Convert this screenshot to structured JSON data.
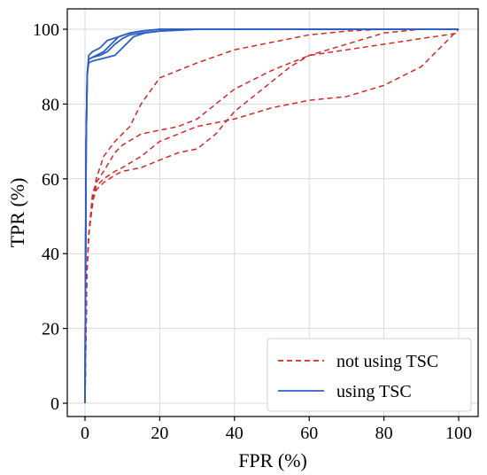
{
  "chart_data": {
    "type": "line",
    "title": "",
    "xlabel": "FPR (%)",
    "ylabel": "TPR (%)",
    "xlim": [
      0,
      100
    ],
    "ylim": [
      0,
      100
    ],
    "xticks": [
      0,
      20,
      40,
      60,
      80,
      100
    ],
    "yticks": [
      0,
      20,
      40,
      60,
      80,
      100
    ],
    "grid": true,
    "legend_position": "bottom-right",
    "legend": [
      {
        "label": "not using TSC",
        "style": "dashed",
        "color": "#d62728"
      },
      {
        "label": "using TSC",
        "style": "solid",
        "color": "#2f5fc4"
      }
    ],
    "series": [
      {
        "group": "not using TSC",
        "color": "#d62728",
        "dashed": true,
        "x": [
          0,
          0.5,
          1,
          2,
          3,
          5,
          8,
          12,
          15,
          20,
          30,
          40,
          50,
          60,
          70,
          80,
          90,
          95,
          100
        ],
        "y": [
          0,
          35,
          45,
          53,
          60,
          66,
          70,
          74,
          80,
          87,
          91,
          94.5,
          96.5,
          98.5,
          99.5,
          100,
          100,
          100,
          100
        ]
      },
      {
        "group": "not using TSC",
        "color": "#d62728",
        "dashed": true,
        "x": [
          0,
          0.5,
          1,
          2,
          3,
          5,
          8,
          10,
          15,
          20,
          25,
          30,
          35,
          40,
          50,
          60,
          70,
          80,
          90,
          100
        ],
        "y": [
          0,
          35,
          45,
          55,
          58,
          60,
          62,
          63,
          66,
          70,
          72,
          74,
          75,
          76,
          79,
          81,
          82,
          85,
          90,
          100
        ]
      },
      {
        "group": "not using TSC",
        "color": "#d62728",
        "dashed": true,
        "x": [
          0,
          0.5,
          1,
          2,
          3,
          5,
          8,
          10,
          15,
          20,
          25,
          30,
          35,
          40,
          45,
          50,
          55,
          60,
          70,
          80,
          90,
          100
        ],
        "y": [
          0,
          35,
          45,
          54,
          57,
          59,
          61,
          62,
          63,
          65,
          67,
          68,
          72,
          78,
          82,
          86,
          90,
          93,
          96,
          99,
          100,
          100
        ]
      },
      {
        "group": "not using TSC",
        "color": "#d62728",
        "dashed": true,
        "x": [
          0,
          0.5,
          1,
          2,
          3,
          5,
          8,
          10,
          15,
          20,
          25,
          30,
          40,
          50,
          60,
          70,
          80,
          90,
          100
        ],
        "y": [
          0,
          35,
          45,
          56,
          59,
          62,
          67,
          69,
          72,
          73,
          74,
          76,
          84,
          89,
          93,
          94.5,
          96,
          97.5,
          99
        ]
      },
      {
        "group": "using TSC",
        "color": "#2f5fc4",
        "dashed": false,
        "x": [
          0,
          0.3,
          0.6,
          1,
          2,
          4,
          6,
          8,
          10,
          12,
          15,
          20,
          30,
          50,
          100
        ],
        "y": [
          0,
          70,
          88,
          92,
          92.5,
          93,
          94,
          96,
          97.5,
          98.5,
          99,
          99.5,
          100,
          100,
          100
        ]
      },
      {
        "group": "using TSC",
        "color": "#2f5fc4",
        "dashed": false,
        "x": [
          0,
          0.3,
          0.6,
          1,
          2,
          3,
          5,
          7,
          9,
          12,
          15,
          20,
          30,
          100
        ],
        "y": [
          0,
          70,
          88,
          92,
          92.5,
          93,
          94,
          96,
          98,
          99,
          99.5,
          100,
          100,
          100
        ]
      },
      {
        "group": "using TSC",
        "color": "#2f5fc4",
        "dashed": false,
        "x": [
          0,
          0.3,
          0.6,
          1,
          2,
          4,
          6,
          8,
          10,
          13,
          16,
          20,
          30,
          100
        ],
        "y": [
          0,
          70,
          88,
          91,
          91.5,
          92,
          92.5,
          93,
          95,
          98,
          99,
          99.5,
          100,
          100
        ]
      },
      {
        "group": "using TSC",
        "color": "#2f5fc4",
        "dashed": false,
        "x": [
          0,
          0.3,
          0.6,
          1,
          2,
          4,
          6,
          9,
          12,
          15,
          20,
          100
        ],
        "y": [
          0,
          70,
          88,
          93,
          94,
          95,
          97,
          98,
          99,
          99.5,
          100,
          100
        ]
      }
    ]
  }
}
